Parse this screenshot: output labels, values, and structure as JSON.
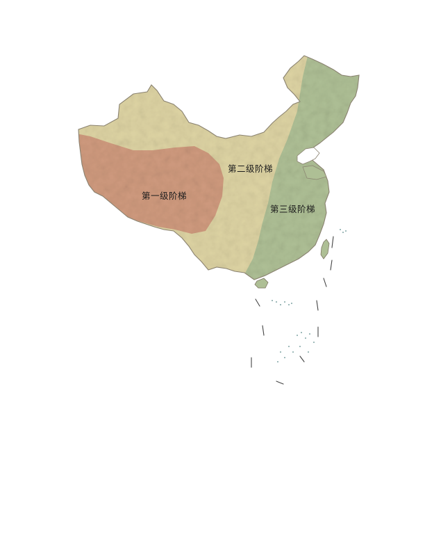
{
  "map": {
    "regions": [
      {
        "label": "第一级阶梯",
        "color": "#cf9a7e"
      },
      {
        "label": "第二级阶梯",
        "color": "#ddd3a3"
      },
      {
        "label": "第三级阶梯",
        "color": "#aebf95"
      }
    ]
  }
}
